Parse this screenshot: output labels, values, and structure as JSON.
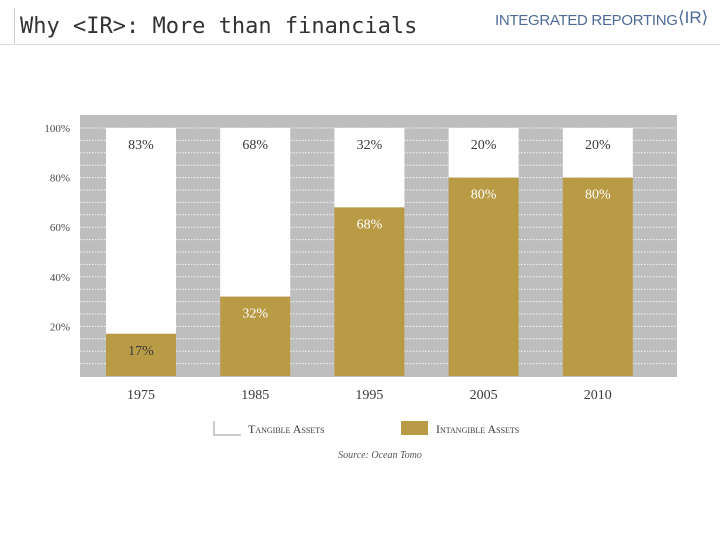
{
  "slide": {
    "title": "Why <IR>: More than financials"
  },
  "logo": {
    "text": "INTEGRATED REPORTING",
    "mark": "⟨IR⟩"
  },
  "source": "Source: Ocean Tomo",
  "colors": {
    "tangible": "#ffffff",
    "intangible": "#b99a45",
    "plot_bg": "#bebebe",
    "label_text": "#4a4a4a",
    "logo": "#4e6a9a"
  },
  "chart_data": {
    "type": "bar",
    "stacked": true,
    "categories": [
      "1975",
      "1985",
      "1995",
      "2005",
      "2010"
    ],
    "series": [
      {
        "name": "Tangible Assets",
        "values": [
          83,
          68,
          32,
          20,
          20
        ],
        "labels": [
          "83%",
          "68%",
          "32%",
          "20%",
          "20%"
        ]
      },
      {
        "name": "Intangible Assets",
        "values": [
          17,
          32,
          68,
          80,
          80
        ],
        "labels": [
          "17%",
          "32%",
          "68%",
          "80%",
          "80%"
        ]
      }
    ],
    "yticks": [
      {
        "value": 100,
        "label": "100%"
      },
      {
        "value": 80,
        "label": "80%"
      },
      {
        "value": 60,
        "label": "60%"
      },
      {
        "value": 40,
        "label": "40%"
      },
      {
        "value": 20,
        "label": "20%"
      }
    ],
    "ylim": [
      0,
      100
    ],
    "legend_position": "bottom",
    "grid": true
  }
}
